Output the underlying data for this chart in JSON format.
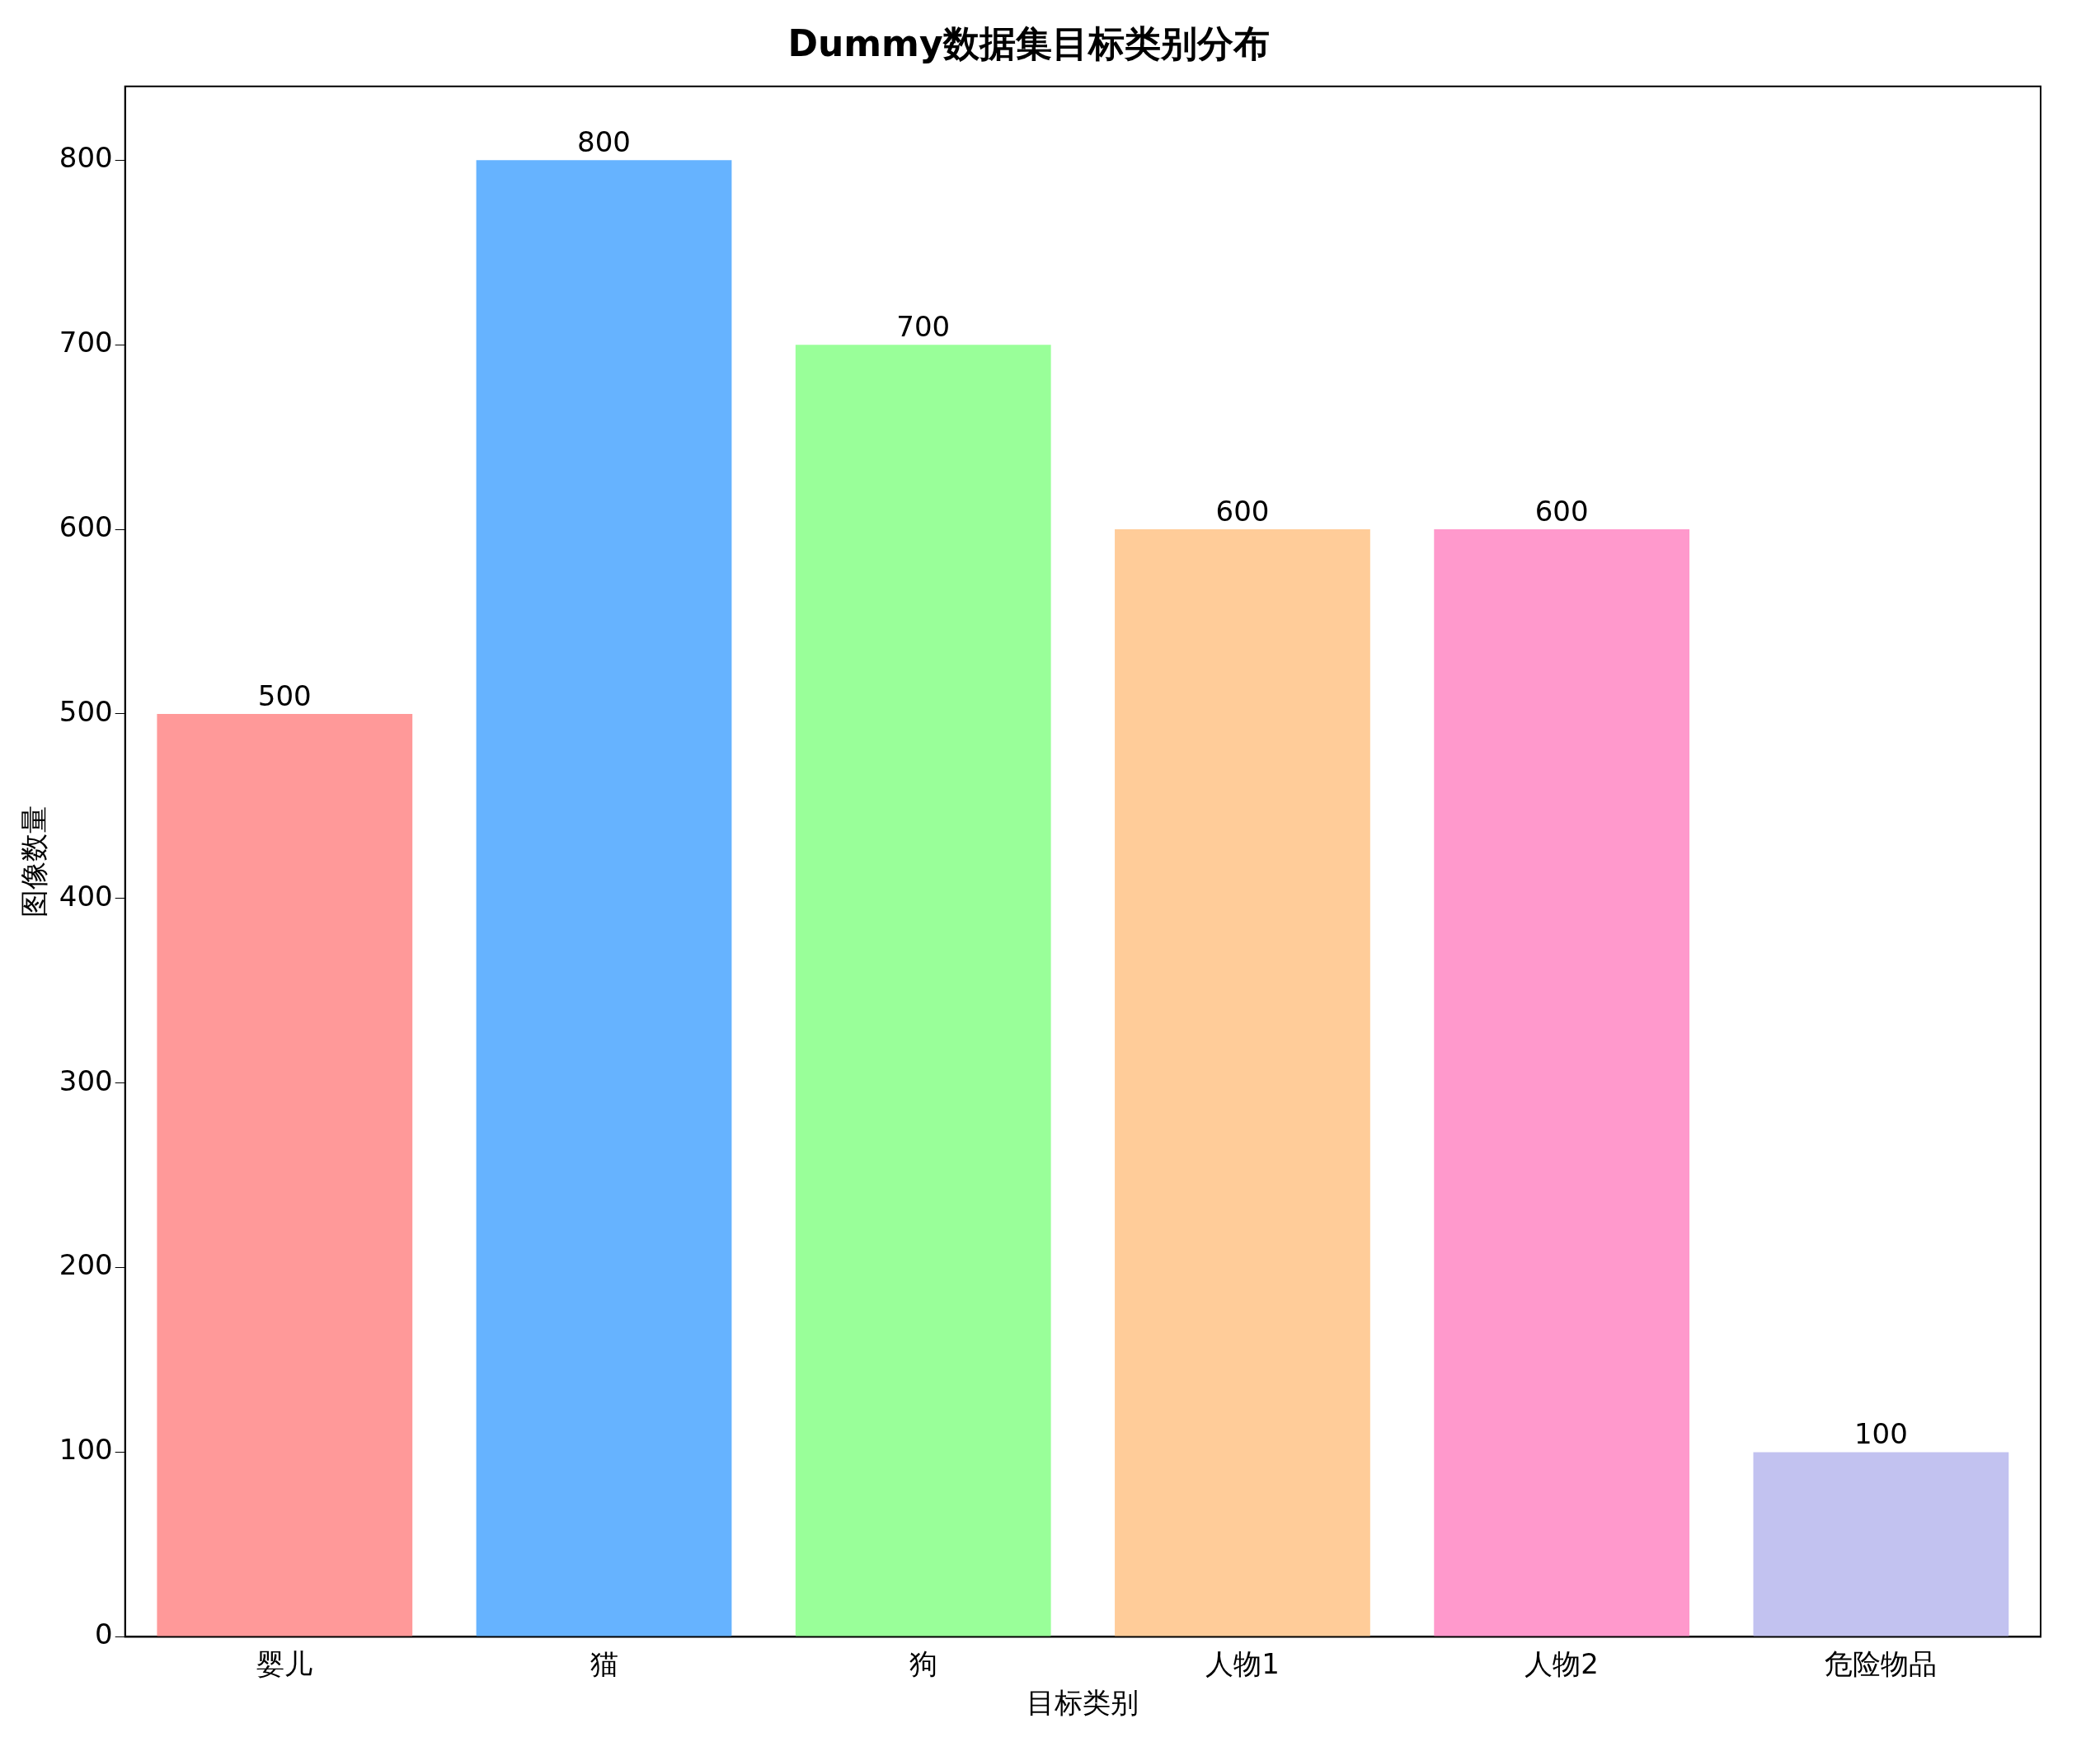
{
  "chart_data": {
    "type": "bar",
    "title": "Dummy数据集目标类别分布",
    "xlabel": "目标类别",
    "ylabel": "图像数量",
    "categories": [
      "婴儿",
      "猫",
      "狗",
      "人物1",
      "人物2",
      "危险物品"
    ],
    "values": [
      500,
      800,
      700,
      600,
      600,
      100
    ],
    "colors": [
      "#ff9999",
      "#66b3ff",
      "#99ff99",
      "#ffcc99",
      "#ff99cc",
      "#c2c2f0"
    ],
    "ylim": [
      0,
      840
    ],
    "yticks": [
      0,
      100,
      200,
      300,
      400,
      500,
      600,
      700,
      800
    ],
    "grid": false,
    "legend": false,
    "data_labels": true
  }
}
